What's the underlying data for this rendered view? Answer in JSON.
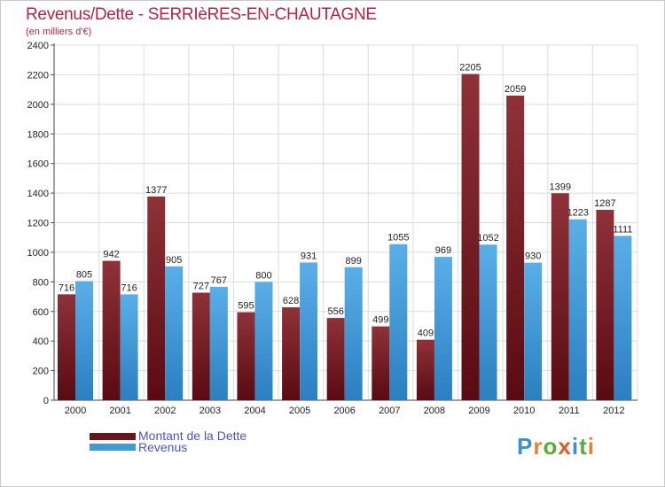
{
  "title": "Revenus/Dette - SERRIèRES-EN-CHAUTAGNE",
  "subtitle": "(en milliers d'€)",
  "brand": "Proxiti",
  "colors": {
    "dette": "#7a1f26",
    "revenus": "#3f9ad8",
    "title": "#b5224a",
    "legend_text": "#4a52c8",
    "grid": "#dcdcdc"
  },
  "chart_data": {
    "type": "bar",
    "categories": [
      "2000",
      "2001",
      "2002",
      "2003",
      "2004",
      "2005",
      "2006",
      "2007",
      "2008",
      "2009",
      "2010",
      "2011",
      "2012"
    ],
    "series": [
      {
        "name": "Montant de la Dette",
        "values": [
          716,
          942,
          1377,
          727,
          595,
          628,
          556,
          499,
          409,
          2205,
          2059,
          1399,
          1287
        ]
      },
      {
        "name": "Revenus",
        "values": [
          805,
          716,
          905,
          767,
          800,
          931,
          899,
          1055,
          969,
          1052,
          930,
          1223,
          1111
        ]
      }
    ],
    "ylim": [
      0,
      2400
    ],
    "yticks": [
      0,
      200,
      400,
      600,
      800,
      1000,
      1200,
      1400,
      1600,
      1800,
      2000,
      2200,
      2400
    ],
    "grid": true,
    "legend": "bottom-left",
    "data_labels": true
  }
}
